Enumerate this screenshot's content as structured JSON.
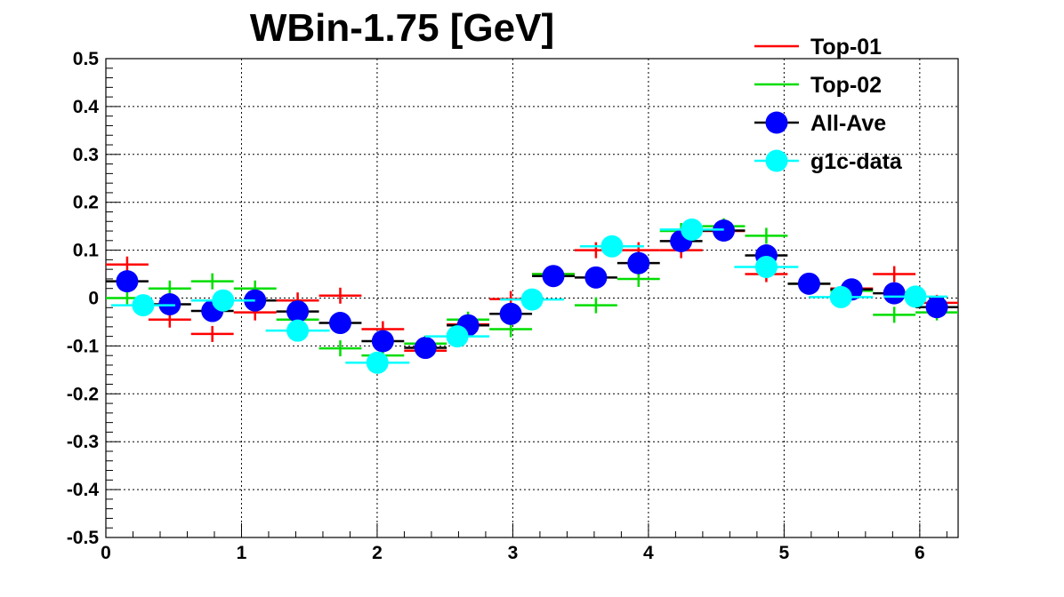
{
  "chart_data": {
    "type": "scatter",
    "title": "WBin-1.75 [GeV]",
    "xlabel": "",
    "ylabel": "",
    "xlim": [
      0,
      6.283
    ],
    "ylim": [
      -0.5,
      0.5
    ],
    "x_ticks": [
      "0",
      "1",
      "2",
      "3",
      "4",
      "5",
      "6"
    ],
    "y_ticks": [
      "-0.5",
      "-0.4",
      "-0.3",
      "-0.2",
      "-0.1",
      "0",
      "0.1",
      "0.2",
      "0.3",
      "0.4",
      "0.5"
    ],
    "grid": true,
    "legend_position": "top-right",
    "series": [
      {
        "name": "Top-01",
        "style": "cross",
        "color": "#ff0000",
        "x": [
          0.157,
          0.471,
          0.785,
          1.1,
          1.414,
          1.728,
          2.042,
          2.356,
          2.67,
          2.985,
          3.299,
          3.613,
          3.927,
          4.241,
          4.555,
          4.869,
          5.184,
          5.498,
          5.812,
          6.126
        ],
        "y": [
          0.07,
          -0.045,
          -0.075,
          -0.03,
          -0.005,
          0.005,
          -0.065,
          -0.11,
          -0.055,
          -0.002,
          0.05,
          0.1,
          0.1,
          0.1,
          0.14,
          0.05,
          0.03,
          0.02,
          0.05,
          -0.01
        ],
        "xerr": 0.157
      },
      {
        "name": "Top-02",
        "style": "cross",
        "color": "#00dd00",
        "x": [
          0.157,
          0.471,
          0.785,
          1.1,
          1.414,
          1.728,
          2.042,
          2.356,
          2.67,
          2.985,
          3.299,
          3.613,
          3.927,
          4.241,
          4.555,
          4.869,
          5.184,
          5.498,
          5.812,
          6.126
        ],
        "y": [
          0.0,
          0.02,
          0.035,
          0.02,
          -0.045,
          -0.105,
          -0.12,
          -0.095,
          -0.045,
          -0.065,
          0.05,
          -0.015,
          0.04,
          0.14,
          0.15,
          0.13,
          0.03,
          0.015,
          -0.035,
          -0.03
        ],
        "xerr": 0.157
      },
      {
        "name": "All-Ave",
        "style": "circle",
        "color": "#0000ff",
        "x": [
          0.157,
          0.471,
          0.785,
          1.1,
          1.414,
          1.728,
          2.042,
          2.356,
          2.67,
          2.985,
          3.299,
          3.613,
          3.927,
          4.241,
          4.555,
          4.869,
          5.184,
          5.498,
          5.812,
          6.126
        ],
        "y": [
          0.035,
          -0.013,
          -0.027,
          -0.005,
          -0.028,
          -0.052,
          -0.09,
          -0.104,
          -0.057,
          -0.033,
          0.046,
          0.043,
          0.073,
          0.119,
          0.141,
          0.089,
          0.03,
          0.018,
          0.01,
          -0.019
        ],
        "xerr": 0.157
      },
      {
        "name": "g1c-data",
        "style": "circle",
        "color": "#00ffff",
        "x": [
          0.275,
          0.864,
          1.414,
          2.002,
          2.591,
          3.142,
          3.731,
          4.32,
          4.869,
          5.419,
          5.968
        ],
        "y": [
          -0.015,
          -0.005,
          -0.068,
          -0.135,
          -0.08,
          -0.003,
          0.108,
          0.143,
          0.065,
          0.002,
          0.003
        ],
        "xerr": 0.236
      }
    ]
  }
}
